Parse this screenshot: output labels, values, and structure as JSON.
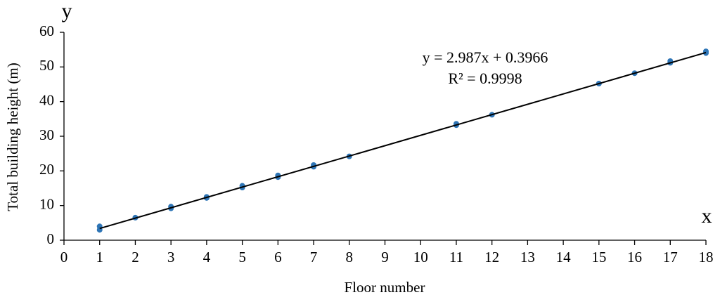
{
  "chart_data": {
    "type": "scatter",
    "x_label": "Floor number",
    "y_label": "Total building height (m)",
    "x_axis_symbol": "x",
    "y_axis_symbol": "y",
    "series": [
      {
        "color": "#2e75b6",
        "x": [
          1,
          1,
          2,
          3,
          3,
          4,
          4,
          5,
          5,
          6,
          6,
          7,
          7,
          8,
          11,
          11,
          12,
          15,
          16,
          17,
          17,
          18,
          18
        ],
        "values": [
          3.0,
          4.0,
          6.5,
          9.2,
          9.7,
          12.2,
          12.5,
          15.2,
          15.7,
          18.2,
          18.7,
          21.2,
          21.7,
          24.2,
          33.2,
          33.6,
          36.2,
          45.2,
          48.2,
          51.2,
          51.7,
          54.0,
          54.5
        ]
      }
    ],
    "trendline": {
      "slope": 2.987,
      "intercept": 0.3966,
      "color": "#000000",
      "equation": "y = 2.987x + 0.3966",
      "r_squared": "R² = 0.9998"
    },
    "xlim": [
      0,
      18
    ],
    "xticks": [
      0,
      1,
      2,
      3,
      4,
      5,
      6,
      7,
      8,
      9,
      10,
      11,
      12,
      13,
      14,
      15,
      16,
      17,
      18
    ],
    "ylim": [
      0,
      60
    ],
    "yticks": [
      0,
      10,
      20,
      30,
      40,
      50,
      60
    ],
    "grid": false
  }
}
